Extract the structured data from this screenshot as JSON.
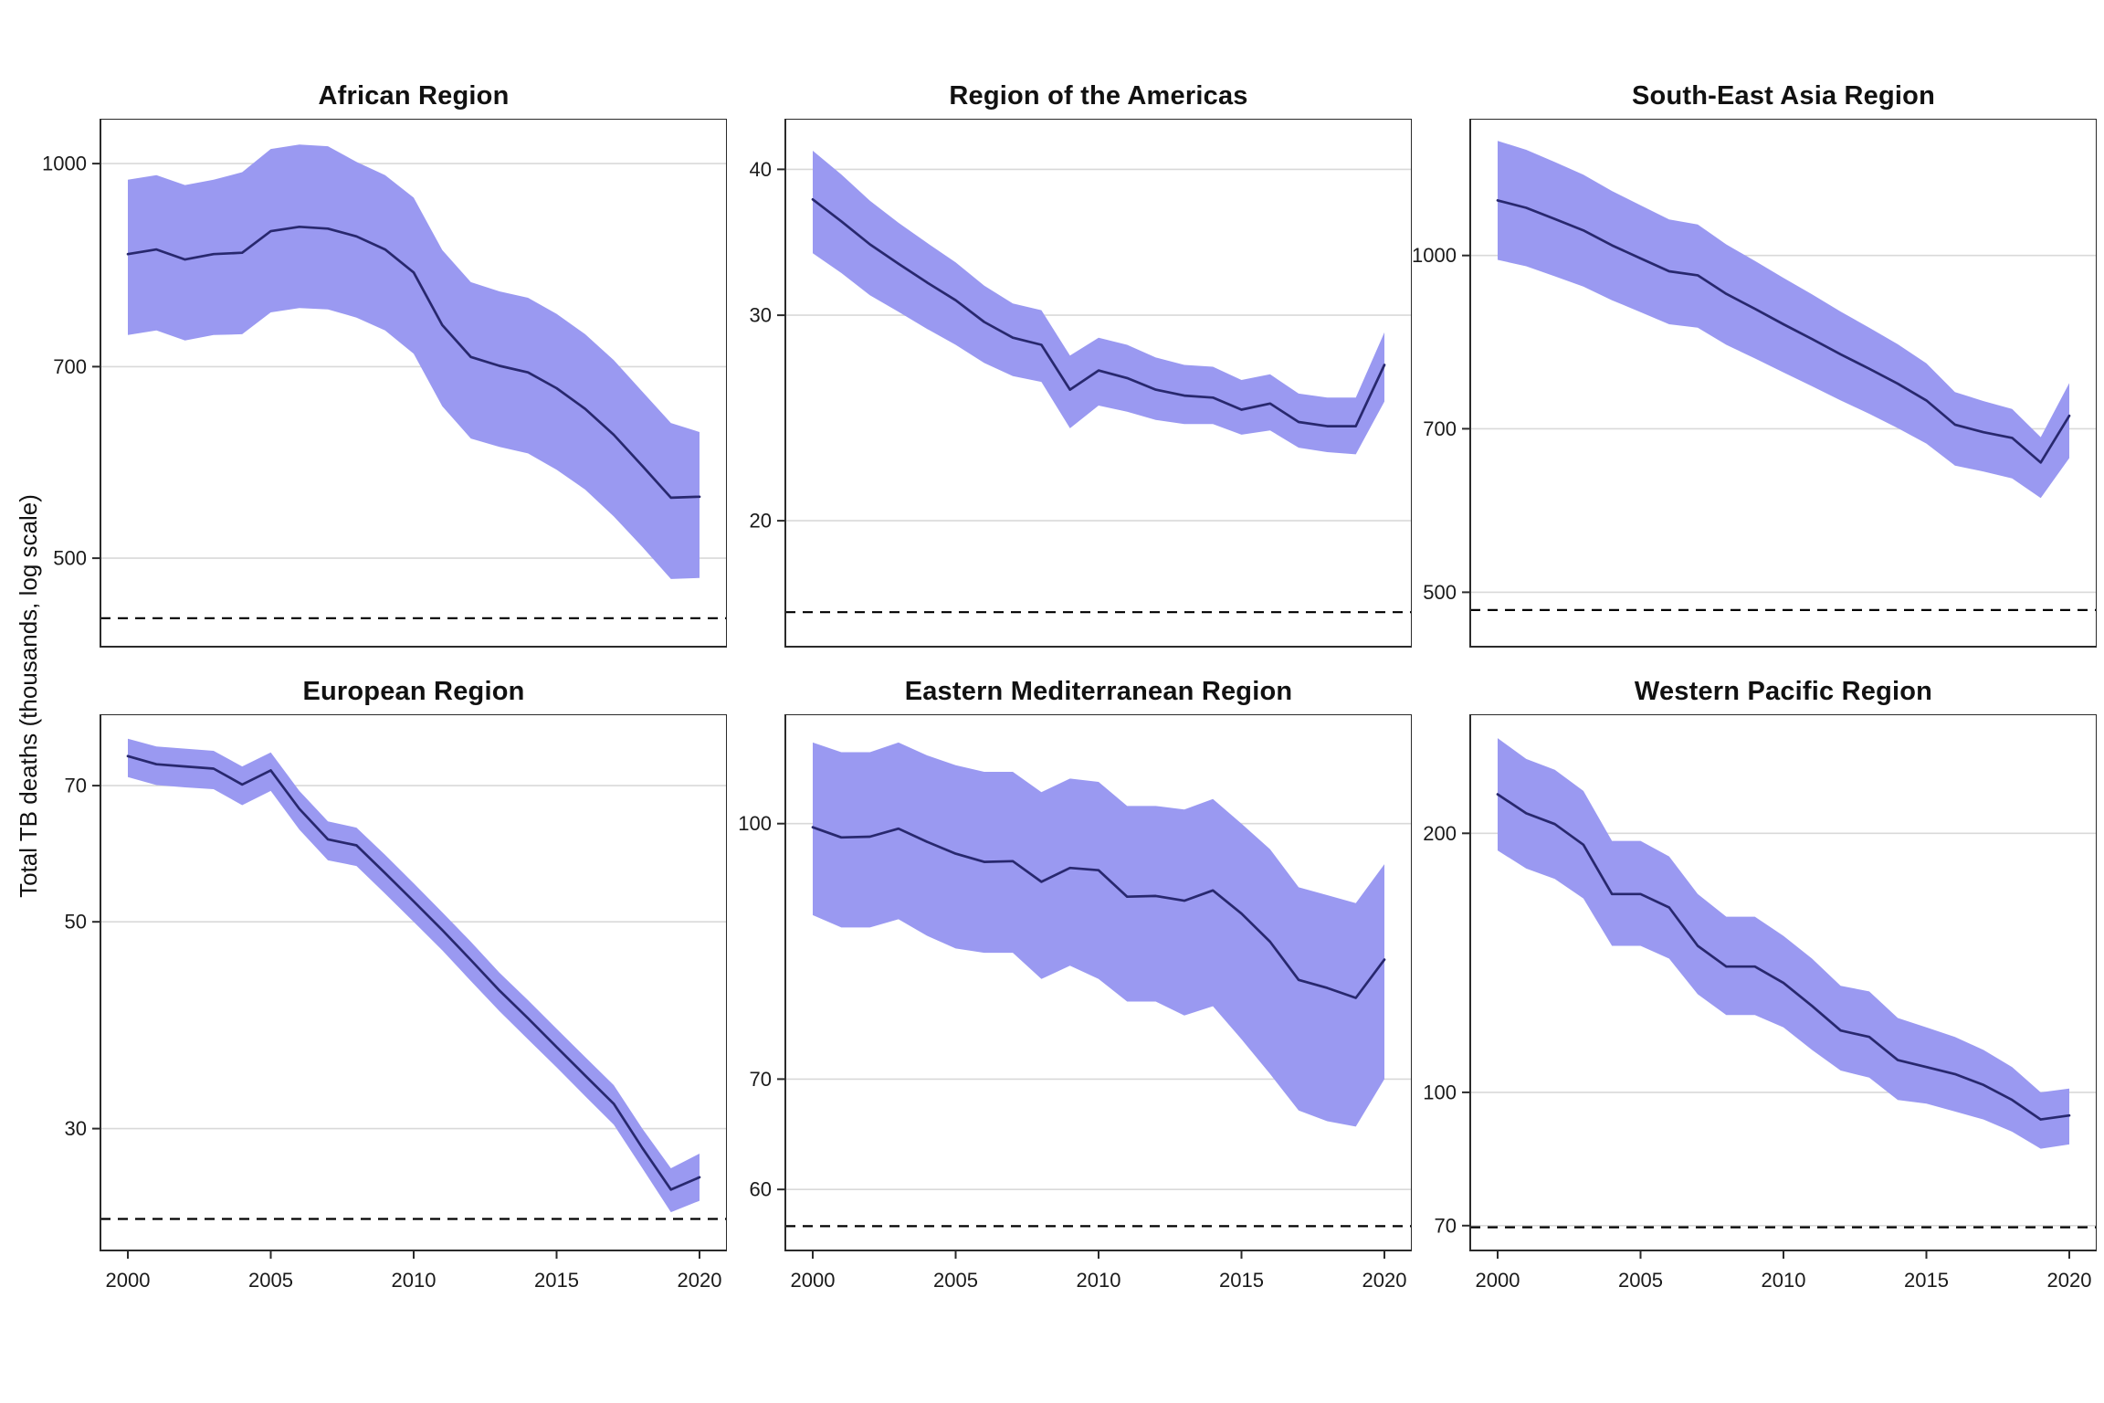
{
  "figure": {
    "y_axis_label": "Total TB deaths (thousands, log scale)"
  },
  "style": {
    "ribbon_color": "#9a99f1",
    "line_color": "#28286e",
    "grid_color": "#d9d9d9",
    "border_color": "#2b2b2b",
    "dashed_line_color": "#000000",
    "text_color": "#1a1a1a",
    "background": "#ffffff"
  },
  "chart_data": [
    {
      "type": "line",
      "title": "African Region",
      "yscale": "log",
      "grid": "horizontal",
      "xlabel": "",
      "ylabel": "",
      "x": [
        2000,
        2001,
        2002,
        2003,
        2004,
        2005,
        2006,
        2007,
        2008,
        2009,
        2010,
        2011,
        2012,
        2013,
        2014,
        2015,
        2016,
        2017,
        2018,
        2019,
        2020
      ],
      "series": [
        {
          "name": "best_estimate",
          "values": [
            853,
            860,
            845,
            853,
            855,
            888,
            895,
            892,
            880,
            860,
            826,
            753,
            712,
            701,
            693,
            674,
            650,
            621,
            588,
            556,
            557
          ]
        },
        {
          "name": "lower_bound",
          "values": [
            740,
            746,
            733,
            740,
            741,
            770,
            776,
            774,
            763,
            746,
            716,
            653,
            617,
            608,
            601,
            584,
            564,
            538,
            510,
            482,
            483
          ]
        },
        {
          "name": "upper_bound",
          "values": [
            972,
            980,
            963,
            972,
            985,
            1026,
            1034,
            1031,
            1003,
            980,
            942,
            859,
            812,
            799,
            790,
            768,
            741,
            708,
            670,
            634,
            624
          ]
        }
      ],
      "ribbon": true,
      "ylim": [
        428,
        1082
      ],
      "yticks": [
        1000,
        700,
        500
      ],
      "xticks": [
        2000,
        2005,
        2010,
        2015,
        2020
      ],
      "dashed_target_line": 450,
      "show_x_labels": false
    },
    {
      "type": "line",
      "title": "Region of the Americas",
      "yscale": "log",
      "grid": "horizontal",
      "xlabel": "",
      "ylabel": "",
      "x": [
        2000,
        2001,
        2002,
        2003,
        2004,
        2005,
        2006,
        2007,
        2008,
        2009,
        2010,
        2011,
        2012,
        2013,
        2014,
        2015,
        2016,
        2017,
        2018,
        2019,
        2020
      ],
      "series": [
        {
          "name": "best_estimate",
          "values": [
            37.7,
            36.1,
            34.5,
            33.2,
            32.0,
            30.9,
            29.6,
            28.7,
            28.3,
            25.9,
            26.9,
            26.5,
            25.9,
            25.6,
            25.5,
            24.9,
            25.2,
            24.3,
            24.1,
            24.1,
            27.2
          ]
        },
        {
          "name": "lower_bound",
          "values": [
            33.9,
            32.6,
            31.2,
            30.2,
            29.2,
            28.3,
            27.3,
            26.6,
            26.3,
            24.0,
            25.1,
            24.8,
            24.4,
            24.2,
            24.2,
            23.7,
            23.9,
            23.1,
            22.9,
            22.8,
            25.3
          ]
        },
        {
          "name": "upper_bound",
          "values": [
            41.5,
            39.6,
            37.6,
            36.0,
            34.6,
            33.3,
            31.8,
            30.7,
            30.3,
            27.7,
            28.7,
            28.3,
            27.6,
            27.2,
            27.1,
            26.4,
            26.7,
            25.7,
            25.5,
            25.5,
            29.0
          ]
        }
      ],
      "ribbon": true,
      "ylim": [
        15.6,
        44.2
      ],
      "yticks": [
        40,
        30,
        20
      ],
      "xticks": [
        2000,
        2005,
        2010,
        2015,
        2020
      ],
      "dashed_target_line": 16.7,
      "show_x_labels": false
    },
    {
      "type": "line",
      "title": "South-East Asia Region",
      "yscale": "log",
      "grid": "horizontal",
      "xlabel": "",
      "ylabel": "",
      "x": [
        2000,
        2001,
        2002,
        2003,
        2004,
        2005,
        2006,
        2007,
        2008,
        2009,
        2010,
        2011,
        2012,
        2013,
        2014,
        2015,
        2016,
        2017,
        2018,
        2019,
        2020
      ],
      "series": [
        {
          "name": "best_estimate",
          "values": [
            1120,
            1103,
            1078,
            1053,
            1021,
            994,
            968,
            960,
            924,
            896,
            868,
            842,
            816,
            792,
            768,
            742,
            706,
            695,
            687,
            653,
            719
          ]
        },
        {
          "name": "lower_bound",
          "values": [
            991,
            978,
            958,
            938,
            912,
            890,
            868,
            862,
            832,
            809,
            786,
            764,
            742,
            722,
            701,
            679,
            649,
            641,
            632,
            607,
            659
          ]
        },
        {
          "name": "upper_bound",
          "values": [
            1266,
            1243,
            1212,
            1181,
            1142,
            1109,
            1077,
            1066,
            1023,
            989,
            955,
            923,
            891,
            862,
            833,
            801,
            755,
            741,
            729,
            688,
            769
          ]
        }
      ],
      "ribbon": true,
      "ylim": [
        447,
        1325
      ],
      "yticks": [
        1000,
        700,
        500
      ],
      "xticks": [
        2000,
        2005,
        2010,
        2015,
        2020
      ],
      "dashed_target_line": 482,
      "show_x_labels": false
    },
    {
      "type": "line",
      "title": "European Region",
      "yscale": "log",
      "grid": "horizontal",
      "xlabel": "",
      "ylabel": "",
      "x": [
        2000,
        2001,
        2002,
        2003,
        2004,
        2005,
        2006,
        2007,
        2008,
        2009,
        2010,
        2011,
        2012,
        2013,
        2014,
        2015,
        2016,
        2017,
        2018,
        2019,
        2020
      ],
      "series": [
        {
          "name": "best_estimate",
          "values": [
            75.3,
            73.8,
            73.4,
            73.0,
            70.2,
            72.7,
            66.1,
            61.3,
            60.4,
            56.4,
            52.6,
            49.0,
            45.5,
            42.2,
            39.4,
            36.7,
            34.2,
            31.9,
            28.6,
            25.8,
            26.6
          ]
        },
        {
          "name": "lower_bound",
          "values": [
            71.5,
            70.1,
            69.7,
            69.4,
            66.7,
            69.1,
            62.8,
            58.2,
            57.4,
            53.6,
            50.0,
            46.6,
            43.2,
            40.1,
            37.4,
            34.9,
            32.5,
            30.3,
            27.2,
            24.4,
            25.1
          ]
        },
        {
          "name": "upper_bound",
          "values": [
            78.6,
            77.1,
            76.7,
            76.3,
            73.4,
            76.0,
            69.1,
            64.1,
            63.1,
            59.0,
            55.0,
            51.2,
            47.6,
            44.1,
            41.2,
            38.4,
            35.8,
            33.4,
            30.0,
            27.2,
            28.2
          ]
        }
      ],
      "ribbon": true,
      "ylim": [
        22.2,
        83.5
      ],
      "yticks": [
        70,
        50,
        30
      ],
      "xticks": [
        2000,
        2005,
        2010,
        2015,
        2020
      ],
      "dashed_target_line": 24,
      "show_x_labels": true
    },
    {
      "type": "line",
      "title": "Eastern Mediterranean Region",
      "yscale": "log",
      "grid": "horizontal",
      "xlabel": "",
      "ylabel": "",
      "x": [
        2000,
        2001,
        2002,
        2003,
        2004,
        2005,
        2006,
        2007,
        2008,
        2009,
        2010,
        2011,
        2012,
        2013,
        2014,
        2015,
        2016,
        2017,
        2018,
        2019,
        2020
      ],
      "series": [
        {
          "name": "best_estimate",
          "values": [
            99.5,
            98.1,
            98.2,
            99.3,
            97.5,
            95.9,
            94.8,
            94.9,
            92.2,
            94.0,
            93.7,
            90.3,
            90.4,
            89.8,
            91.1,
            88.2,
            84.8,
            80.4,
            79.5,
            78.4,
            82.7
          ]
        },
        {
          "name": "lower_bound",
          "values": [
            88,
            86.5,
            86.5,
            87.5,
            85.5,
            84,
            83.5,
            83.5,
            80.5,
            82,
            80.5,
            78,
            78,
            76.5,
            77.5,
            74,
            70.5,
            67,
            66,
            65.5,
            70
          ]
        },
        {
          "name": "upper_bound",
          "values": [
            112,
            110.5,
            110.5,
            112,
            110,
            108.5,
            107.5,
            107.5,
            104.5,
            106.5,
            106,
            102.5,
            102.5,
            102,
            103.5,
            100,
            96.5,
            91.5,
            90.5,
            89.5,
            94.5
          ]
        }
      ],
      "ribbon": true,
      "ylim": [
        55.1,
        116.5
      ],
      "yticks": [
        100,
        70,
        60
      ],
      "xticks": [
        2000,
        2005,
        2010,
        2015,
        2020
      ],
      "dashed_target_line": 57,
      "show_x_labels": true
    },
    {
      "type": "line",
      "title": "Western Pacific Region",
      "yscale": "log",
      "grid": "horizontal",
      "xlabel": "",
      "ylabel": "",
      "x": [
        2000,
        2001,
        2002,
        2003,
        2004,
        2005,
        2006,
        2007,
        2008,
        2009,
        2010,
        2011,
        2012,
        2013,
        2014,
        2015,
        2016,
        2017,
        2018,
        2019,
        2020
      ],
      "series": [
        {
          "name": "best_estimate",
          "values": [
            222,
            211,
            205,
            194,
            170,
            170,
            164,
            148,
            140,
            140,
            134,
            126,
            118,
            116,
            109,
            107,
            105,
            102,
            98,
            93,
            94
          ]
        },
        {
          "name": "lower_bound",
          "values": [
            191,
            182,
            177,
            168,
            148,
            148,
            143,
            130,
            123,
            123,
            119,
            112,
            106,
            104,
            98,
            97,
            95,
            93,
            90,
            86,
            87
          ]
        },
        {
          "name": "upper_bound",
          "values": [
            258,
            244,
            237,
            224,
            196,
            196,
            188,
            170,
            160,
            160,
            152,
            143,
            133,
            131,
            122,
            119,
            116,
            112,
            107,
            100,
            101
          ]
        }
      ],
      "ribbon": true,
      "ylim": [
        65.5,
        275
      ],
      "yticks": [
        200,
        100,
        70
      ],
      "xticks": [
        2000,
        2005,
        2010,
        2015,
        2020
      ],
      "dashed_target_line": 69.7,
      "show_x_labels": true
    }
  ]
}
